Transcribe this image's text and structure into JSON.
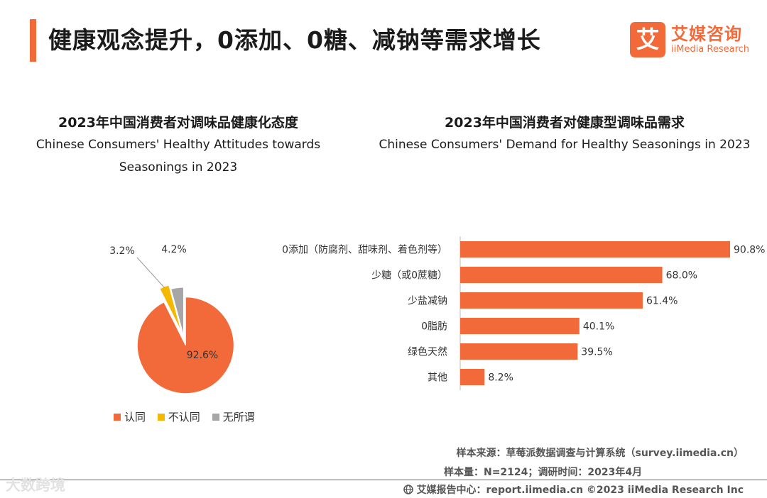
{
  "page": {
    "title": "健康观念提升，0添加、0糖、减钠等需求增长"
  },
  "logo": {
    "mark": "艾",
    "name_cn": "艾媒咨询",
    "name_en": "iiMedia Research"
  },
  "colors": {
    "accent": "#f26a3a",
    "yellow": "#f5b800",
    "gray": "#a6a6a6"
  },
  "chart_data": [
    {
      "type": "pie",
      "title": "2023年中国消费者对调味品健康化态度",
      "subtitle_line1": "Chinese Consumers' Healthy Attitudes towards",
      "subtitle_line2": "Seasonings in 2023",
      "categories": [
        "认同",
        "不认同",
        "无所谓"
      ],
      "values": [
        92.6,
        3.2,
        4.2
      ],
      "value_labels": [
        "92.6%",
        "3.2%",
        "4.2%"
      ],
      "colors": [
        "#f26a3a",
        "#f5b800",
        "#a6a6a6"
      ],
      "legend_position": "bottom"
    },
    {
      "type": "bar",
      "orientation": "horizontal",
      "title": "2023年中国消费者对健康型调味品需求",
      "subtitle": "Chinese Consumers' Demand for Healthy Seasonings in 2023",
      "categories": [
        "0添加（防腐剂、甜味剂、着色剂等）",
        "少糖（或0蔗糖）",
        "少盐减钠",
        "0脂肪",
        "绿色天然",
        "其他"
      ],
      "values": [
        90.8,
        68.0,
        61.4,
        40.1,
        39.5,
        8.2
      ],
      "value_labels": [
        "90.8%",
        "68.0%",
        "61.4%",
        "40.1%",
        "39.5%",
        "8.2%"
      ],
      "xlim": [
        0,
        100
      ],
      "color": "#f26a3a"
    }
  ],
  "footer": {
    "source": "样本来源：草莓派数据调查与计算系统（survey.iimedia.cn）",
    "sample": "样本量：N=2124；调研时间：2023年4月",
    "center_icon": "globe-icon",
    "report": "艾媒报告中心：report.iimedia.cn  ©2023  iiMedia Research  Inc",
    "watermark": "大数跨境"
  }
}
